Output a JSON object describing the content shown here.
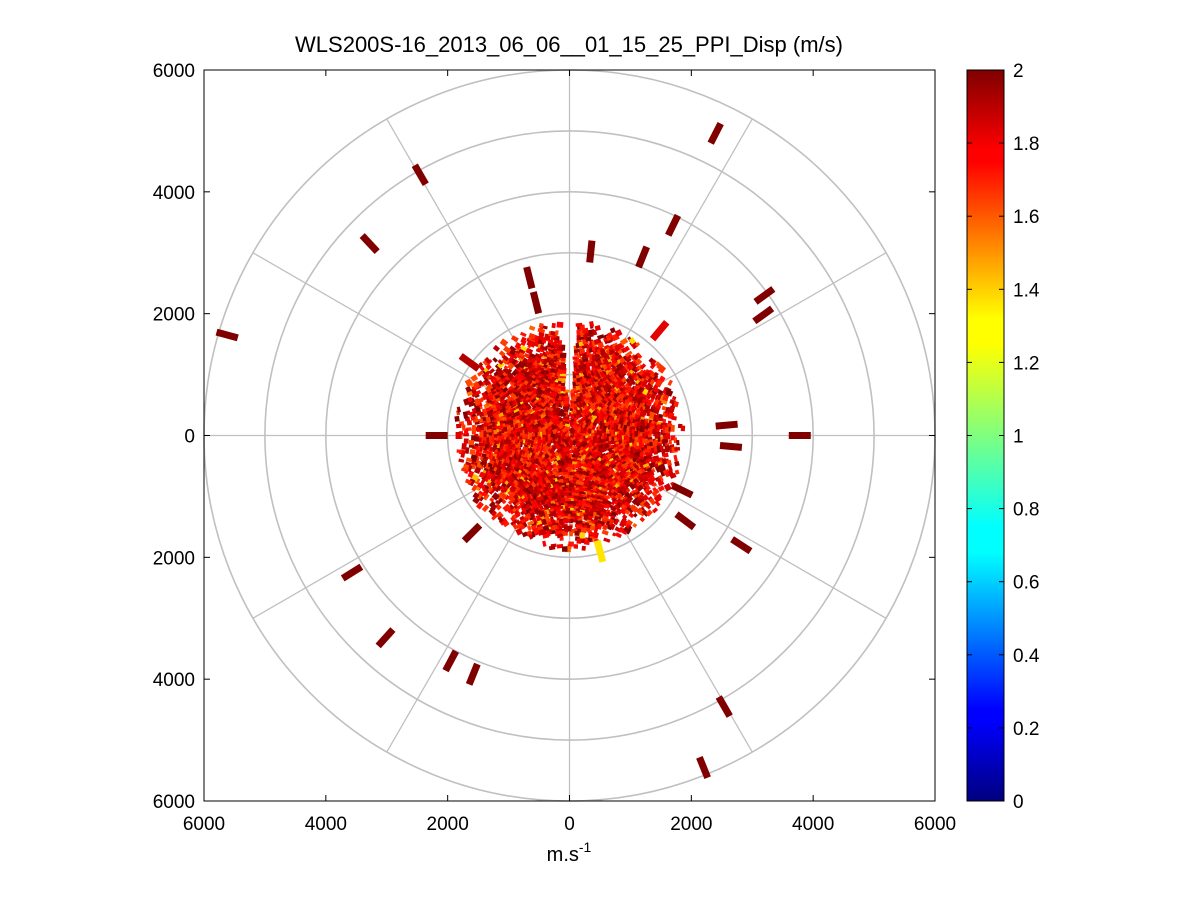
{
  "chart_data": {
    "type": "heatmap",
    "subtype": "polar-ppi",
    "title": "WLS200S-16_2013_06_06__01_15_25_PPI_Disp (m/s)",
    "xlabel": "m.s",
    "xlabel_superscript": "-1",
    "ylabel": "",
    "xlim": [
      -6000,
      6000
    ],
    "ylim": [
      -6000,
      6000
    ],
    "x_tick_values": [
      -6000,
      -4000,
      -2000,
      0,
      2000,
      4000,
      6000
    ],
    "x_tick_labels": [
      "6000",
      "4000",
      "2000",
      "0",
      "2000",
      "4000",
      "6000"
    ],
    "y_tick_values": [
      6000,
      4000,
      2000,
      0,
      -2000,
      -4000,
      -6000
    ],
    "y_tick_labels": [
      "6000",
      "4000",
      "2000",
      "0",
      "2000",
      "4000",
      "6000"
    ],
    "polar_grid": {
      "ring_radii": [
        1000,
        2000,
        3000,
        4000,
        5000,
        6000
      ],
      "spoke_angles_deg": [
        0,
        30,
        60,
        90,
        120,
        150,
        180,
        210,
        240,
        270,
        300,
        330
      ]
    },
    "colorbar": {
      "min": 0,
      "max": 2,
      "colormap": "jet",
      "tick_values": [
        0,
        0.2,
        0.4,
        0.6,
        0.8,
        1,
        1.2,
        1.4,
        1.6,
        1.8,
        2
      ],
      "tick_labels": [
        "0",
        "0.2",
        "0.4",
        "0.6",
        "0.8",
        "1",
        "1.2",
        "1.4",
        "1.6",
        "1.8",
        "2"
      ]
    },
    "core_region": {
      "description": "dense returns near the lidar",
      "radius_max": 1900,
      "azimuth_gap_deg": [
        356,
        4
      ],
      "value_range": [
        1.6,
        2.0
      ]
    },
    "range_gates": [
      {
        "x": -5620,
        "y": 1650,
        "value": 2,
        "dir_deg": 75
      },
      {
        "x": -3280,
        "y": 3150,
        "value": 2,
        "dir_deg": 43
      },
      {
        "x": -2450,
        "y": 4280,
        "value": 2,
        "dir_deg": 30
      },
      {
        "x": -660,
        "y": 2590,
        "value": 2,
        "dir_deg": 14
      },
      {
        "x": -550,
        "y": 2180,
        "value": 2,
        "dir_deg": 14
      },
      {
        "x": 350,
        "y": 3020,
        "value": 2,
        "dir_deg": 354
      },
      {
        "x": 1200,
        "y": 2930,
        "value": 2,
        "dir_deg": 338
      },
      {
        "x": 1700,
        "y": 3450,
        "value": 2,
        "dir_deg": 334
      },
      {
        "x": 2400,
        "y": 4960,
        "value": 2,
        "dir_deg": 333
      },
      {
        "x": 3200,
        "y": 2300,
        "value": 2,
        "dir_deg": 306
      },
      {
        "x": 3180,
        "y": 1980,
        "value": 2,
        "dir_deg": 306
      },
      {
        "x": 1480,
        "y": 1720,
        "value": 1.8,
        "dir_deg": 320
      },
      {
        "x": 2580,
        "y": 170,
        "value": 2,
        "dir_deg": 275
      },
      {
        "x": 2650,
        "y": -180,
        "value": 2,
        "dir_deg": 265
      },
      {
        "x": 3780,
        "y": 0,
        "value": 2,
        "dir_deg": 270
      },
      {
        "x": 1900,
        "y": -1400,
        "value": 2,
        "dir_deg": 233
      },
      {
        "x": 2820,
        "y": -1800,
        "value": 2,
        "dir_deg": 237
      },
      {
        "x": 2540,
        "y": -4450,
        "value": 2,
        "dir_deg": 210
      },
      {
        "x": 2200,
        "y": -5450,
        "value": 2,
        "dir_deg": 202
      },
      {
        "x": -1950,
        "y": -3700,
        "value": 2,
        "dir_deg": 152
      },
      {
        "x": -1580,
        "y": -3920,
        "value": 2,
        "dir_deg": 158
      },
      {
        "x": -1600,
        "y": -1600,
        "value": 2,
        "dir_deg": 135
      },
      {
        "x": -3570,
        "y": -2250,
        "value": 2,
        "dir_deg": 122
      },
      {
        "x": -3020,
        "y": -3320,
        "value": 2,
        "dir_deg": 138
      },
      {
        "x": -1640,
        "y": 1200,
        "value": 1.9,
        "dir_deg": 54
      },
      {
        "x": -2180,
        "y": 0,
        "value": 2,
        "dir_deg": 90
      },
      {
        "x": 1850,
        "y": -900,
        "value": 2,
        "dir_deg": 244
      },
      {
        "x": 500,
        "y": -1900,
        "value": 1.3,
        "dir_deg": 195
      }
    ]
  }
}
